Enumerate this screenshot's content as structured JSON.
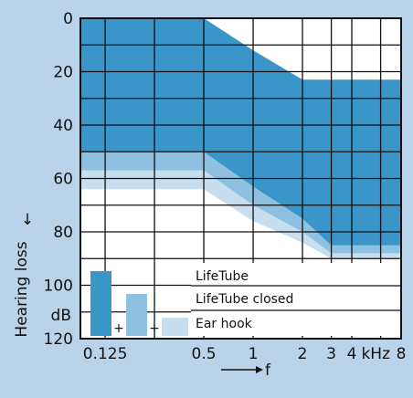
{
  "colors": {
    "background": "#b9d4ea",
    "plot_background": "#ffffff",
    "lifetube": "#3a96c8",
    "lifetube_closed": "#8ec0e0",
    "ear_hook": "#c7def0",
    "grid": "#111111"
  },
  "chart_data": {
    "type": "area",
    "ylabel": "Hearing loss",
    "ylabel_arrow": "↓",
    "y_unit": "dB",
    "xlabel": "f",
    "x_scale": "log",
    "x_unit_tick": "kHz",
    "x_tick_labels": [
      {
        "value": 0.125,
        "label": "0.125"
      },
      {
        "value": 0.5,
        "label": "0.5"
      },
      {
        "value": 1,
        "label": "1"
      },
      {
        "value": 2,
        "label": "2"
      },
      {
        "value": 3,
        "label": "3"
      },
      {
        "value": 4,
        "label": "4"
      },
      {
        "value": 5.6,
        "label": "kHz"
      },
      {
        "value": 8,
        "label": "8"
      }
    ],
    "x_grid": [
      0.125,
      0.25,
      0.5,
      1,
      2,
      3,
      4,
      6,
      8
    ],
    "xlim": [
      0.0883,
      8
    ],
    "y_ticks": [
      0,
      20,
      40,
      60,
      80,
      100,
      120
    ],
    "y_grid": [
      0,
      10,
      20,
      30,
      40,
      50,
      60,
      70,
      80,
      90,
      100,
      110,
      120
    ],
    "ylim": [
      0,
      120
    ],
    "y_inverted": true,
    "series": [
      {
        "name": "LifeTube",
        "color_key": "lifetube",
        "upper": [
          [
            0.0883,
            0
          ],
          [
            0.5,
            0
          ],
          [
            1,
            12
          ],
          [
            2,
            23
          ],
          [
            8,
            23
          ]
        ],
        "lower": [
          [
            0.0883,
            50
          ],
          [
            0.5,
            50
          ],
          [
            1,
            63
          ],
          [
            2,
            75
          ],
          [
            3,
            85
          ],
          [
            8,
            85
          ]
        ]
      },
      {
        "name": "LifeTube closed",
        "color_key": "lifetube_closed",
        "upper": [
          [
            0.0883,
            45
          ],
          [
            0.5,
            40
          ],
          [
            1,
            56
          ],
          [
            2,
            70
          ],
          [
            3,
            80
          ],
          [
            8,
            80
          ]
        ],
        "lower": [
          [
            0.0883,
            57
          ],
          [
            0.5,
            57
          ],
          [
            1,
            70
          ],
          [
            2,
            80
          ],
          [
            3,
            88
          ],
          [
            8,
            88
          ]
        ]
      },
      {
        "name": "Ear hook",
        "color_key": "ear_hook",
        "upper": [
          [
            0.0883,
            57
          ],
          [
            0.5,
            57
          ],
          [
            1,
            70
          ],
          [
            2,
            80
          ],
          [
            3,
            88
          ],
          [
            8,
            88
          ]
        ],
        "lower": [
          [
            0.0883,
            64
          ],
          [
            0.5,
            64
          ],
          [
            1,
            76
          ],
          [
            2,
            84
          ],
          [
            3,
            90
          ],
          [
            8,
            90
          ]
        ]
      }
    ],
    "legend": {
      "placement": "bottom-left",
      "plus_sign": "+",
      "labels": [
        "LifeTube",
        "LifeTube closed",
        "Ear hook"
      ]
    }
  }
}
